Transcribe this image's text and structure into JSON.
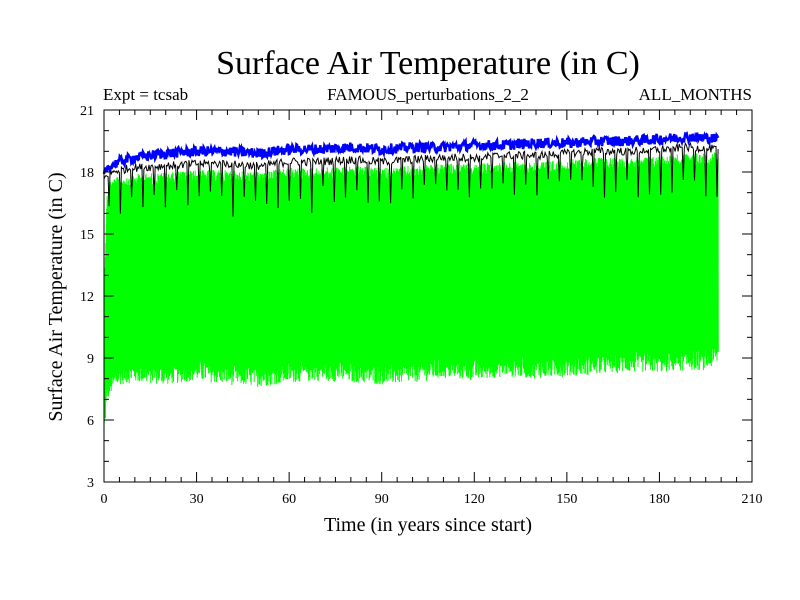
{
  "chart_data": {
    "type": "line",
    "title": "Surface Air Temperature (in C)",
    "subtitle_left": "Expt = tcsab",
    "subtitle_center": "FAMOUS_perturbations_2_2",
    "subtitle_right": "ALL_MONTHS",
    "xlabel": "Time (in years since start)",
    "ylabel": "Surface Air Temperature (in C)",
    "xlim": [
      0,
      210
    ],
    "ylim": [
      3,
      21
    ],
    "xticks": [
      0,
      30,
      60,
      90,
      120,
      150,
      180,
      210
    ],
    "yticks": [
      3,
      6,
      9,
      12,
      15,
      18,
      21
    ],
    "x_tick_labels": [
      "0",
      "30",
      "60",
      "90",
      "120",
      "150",
      "180",
      "210"
    ],
    "y_tick_labels": [
      "3",
      "6",
      "9",
      "12",
      "15",
      "18",
      "21"
    ],
    "series": [
      {
        "name": "monthly minimum envelope (green, seasonal cycle low)",
        "color": "#00ff00",
        "x": [
          0,
          1,
          2,
          5,
          10,
          20,
          30,
          40,
          50,
          60,
          70,
          80,
          90,
          100,
          110,
          120,
          130,
          140,
          150,
          160,
          170,
          180,
          190,
          195,
          199
        ],
        "values": [
          5.5,
          7.2,
          7.5,
          8.0,
          8.1,
          8.0,
          8.2,
          8.0,
          7.9,
          8.1,
          8.2,
          8.1,
          8.0,
          8.1,
          8.3,
          8.2,
          8.4,
          8.3,
          8.4,
          8.5,
          8.6,
          8.6,
          8.7,
          8.7,
          9.0
        ]
      },
      {
        "name": "monthly maximum envelope (green, seasonal cycle high)",
        "color": "#00ff00",
        "x": [
          0,
          1,
          2,
          5,
          10,
          20,
          30,
          40,
          50,
          60,
          70,
          80,
          90,
          100,
          110,
          120,
          130,
          140,
          150,
          160,
          170,
          180,
          190,
          195,
          199
        ],
        "values": [
          12.5,
          17.0,
          17.6,
          17.8,
          17.9,
          18.0,
          18.1,
          18.1,
          18.0,
          18.2,
          18.2,
          18.3,
          18.2,
          18.3,
          18.4,
          18.4,
          18.5,
          18.5,
          18.6,
          18.7,
          18.7,
          18.8,
          18.9,
          18.9,
          19.0
        ]
      },
      {
        "name": "black trace (near upper envelope)",
        "color": "#000000",
        "x": [
          0,
          1,
          5,
          10,
          20,
          30,
          40,
          50,
          60,
          70,
          80,
          90,
          100,
          110,
          120,
          130,
          140,
          150,
          160,
          170,
          180,
          190,
          199
        ],
        "values": [
          17.6,
          17.9,
          18.1,
          18.2,
          18.3,
          18.4,
          18.4,
          18.3,
          18.5,
          18.5,
          18.6,
          18.5,
          18.6,
          18.7,
          18.7,
          18.8,
          18.8,
          18.9,
          19.0,
          19.0,
          19.1,
          19.2,
          19.1
        ]
      },
      {
        "name": "blue trace (top)",
        "color": "#0000ff",
        "x": [
          0,
          1,
          5,
          10,
          20,
          30,
          40,
          50,
          60,
          70,
          80,
          90,
          100,
          110,
          120,
          130,
          140,
          150,
          160,
          170,
          180,
          190,
          199
        ],
        "values": [
          17.8,
          18.2,
          18.5,
          18.7,
          18.9,
          19.0,
          19.0,
          18.9,
          19.1,
          19.1,
          19.2,
          19.1,
          19.2,
          19.2,
          19.3,
          19.3,
          19.4,
          19.4,
          19.5,
          19.5,
          19.6,
          19.7,
          19.6
        ]
      }
    ]
  }
}
